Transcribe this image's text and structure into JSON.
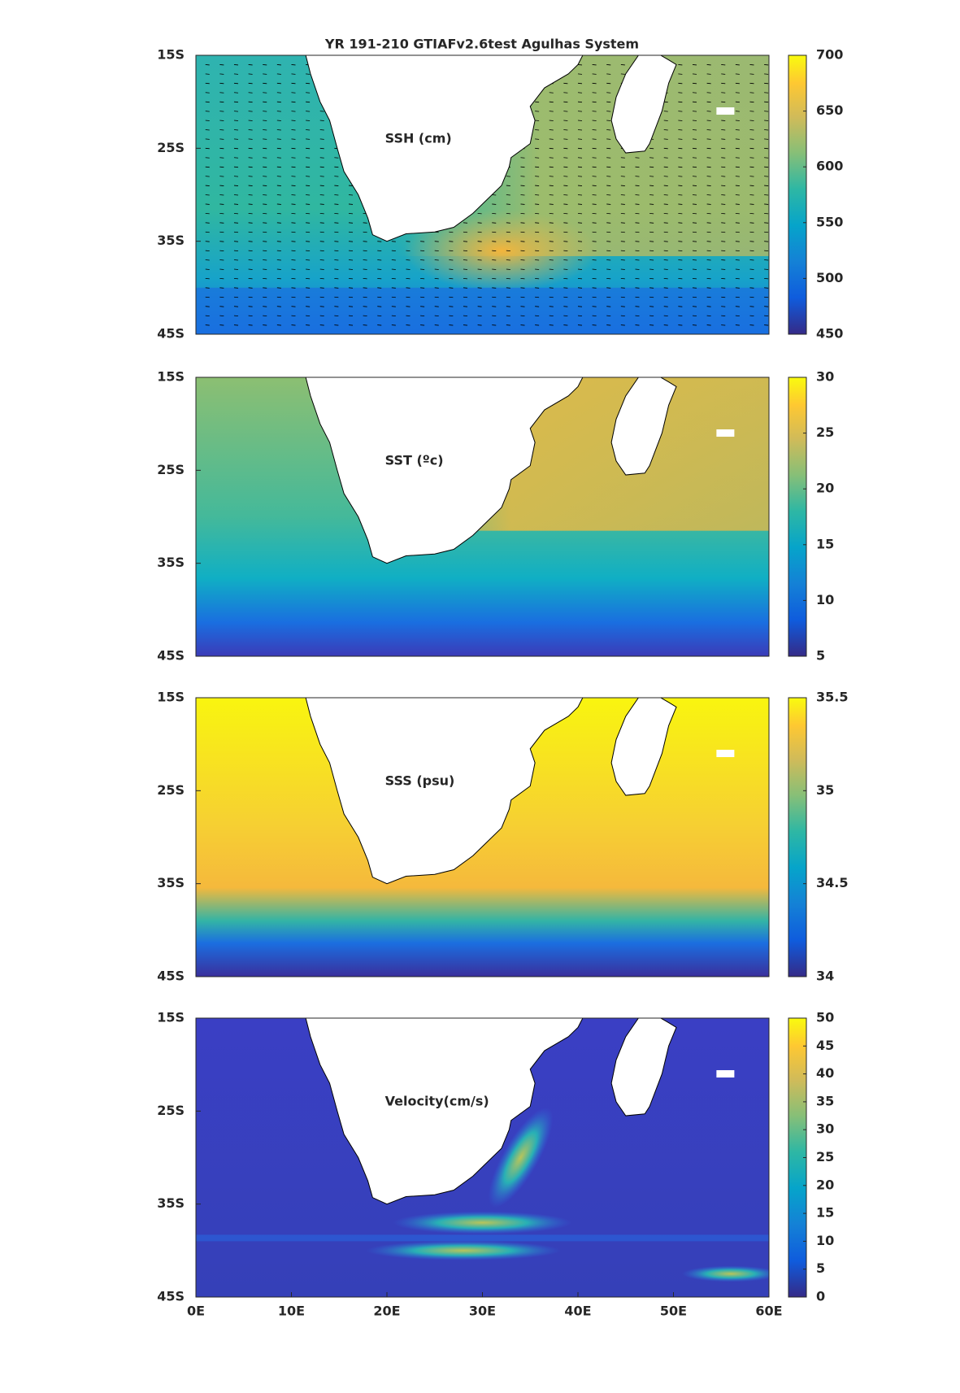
{
  "chart_data": [
    {
      "type": "map",
      "title": "YR 191-210 GTIAFv2.6test Agulhas System",
      "label": "SSH (cm)",
      "field": "ssh",
      "xlim": [
        0,
        60
      ],
      "ylim": [
        -45,
        -15
      ],
      "yticks": [
        {
          "value": -15,
          "label": "15S"
        },
        {
          "value": -25,
          "label": "25S"
        },
        {
          "value": -35,
          "label": "35S"
        },
        {
          "value": -45,
          "label": "45S"
        }
      ],
      "colorbar": {
        "lim": [
          450,
          700
        ],
        "ticks": [
          450,
          500,
          550,
          600,
          650,
          700
        ]
      }
    },
    {
      "type": "map",
      "label": "SST (ºc)",
      "field": "sst",
      "xlim": [
        0,
        60
      ],
      "ylim": [
        -45,
        -15
      ],
      "yticks": [
        {
          "value": -15,
          "label": "15S"
        },
        {
          "value": -25,
          "label": "25S"
        },
        {
          "value": -35,
          "label": "35S"
        },
        {
          "value": -45,
          "label": "45S"
        }
      ],
      "colorbar": {
        "lim": [
          5,
          30
        ],
        "ticks": [
          5,
          10,
          15,
          20,
          25,
          30
        ]
      }
    },
    {
      "type": "map",
      "label": "SSS (psu)",
      "field": "sss",
      "xlim": [
        0,
        60
      ],
      "ylim": [
        -45,
        -15
      ],
      "yticks": [
        {
          "value": -15,
          "label": "15S"
        },
        {
          "value": -25,
          "label": "25S"
        },
        {
          "value": -35,
          "label": "35S"
        },
        {
          "value": -45,
          "label": "45S"
        }
      ],
      "colorbar": {
        "lim": [
          34,
          35.5
        ],
        "ticks": [
          34,
          34.5,
          35,
          35.5
        ]
      }
    },
    {
      "type": "map",
      "label": "Velocity(cm/s)",
      "field": "vel",
      "xlim": [
        0,
        60
      ],
      "ylim": [
        -45,
        -15
      ],
      "yticks": [
        {
          "value": -15,
          "label": "15S"
        },
        {
          "value": -25,
          "label": "25S"
        },
        {
          "value": -35,
          "label": "35S"
        },
        {
          "value": -45,
          "label": "45S"
        }
      ],
      "xticks": [
        {
          "value": 0,
          "label": "0E"
        },
        {
          "value": 10,
          "label": "10E"
        },
        {
          "value": 20,
          "label": "20E"
        },
        {
          "value": 30,
          "label": "30E"
        },
        {
          "value": 40,
          "label": "40E"
        },
        {
          "value": 50,
          "label": "50E"
        },
        {
          "value": 60,
          "label": "60E"
        }
      ],
      "colorbar": {
        "lim": [
          0,
          50
        ],
        "ticks": [
          0,
          5,
          10,
          15,
          20,
          25,
          30,
          35,
          40,
          45,
          50
        ]
      }
    }
  ]
}
